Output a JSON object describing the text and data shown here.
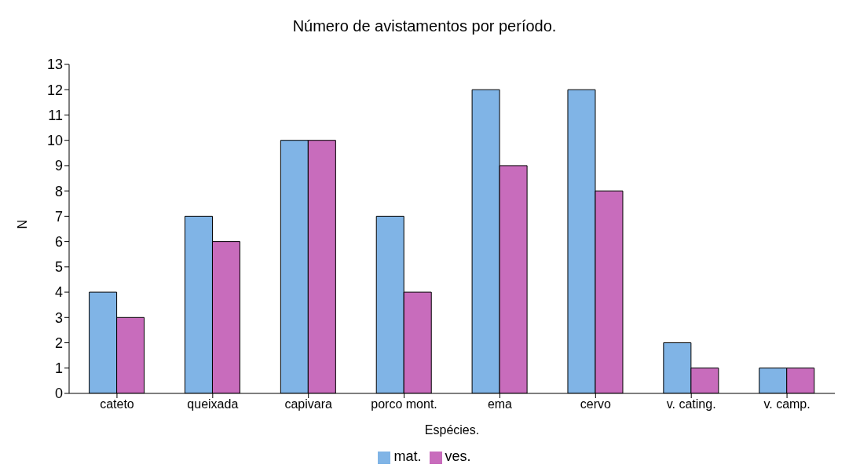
{
  "chart_data": {
    "type": "bar",
    "title": "Número de avistamentos por período.",
    "xlabel": "Espécies.",
    "ylabel": "N",
    "categories": [
      "cateto",
      "queixada",
      "capivara",
      "porco mont.",
      "ema",
      "cervo",
      "v. cating.",
      "v. camp."
    ],
    "series": [
      {
        "name": "mat.",
        "color": "#80b4e6",
        "values": [
          4,
          7,
          10,
          7,
          12,
          12,
          2,
          1
        ]
      },
      {
        "name": "ves.",
        "color": "#c86cbc",
        "values": [
          3,
          6,
          10,
          4,
          9,
          8,
          1,
          1
        ]
      }
    ],
    "ylim": [
      0,
      13
    ],
    "yticks": [
      0,
      1,
      2,
      3,
      4,
      5,
      6,
      7,
      8,
      9,
      10,
      11,
      12,
      13
    ],
    "grid": false,
    "legend": "bottom"
  }
}
